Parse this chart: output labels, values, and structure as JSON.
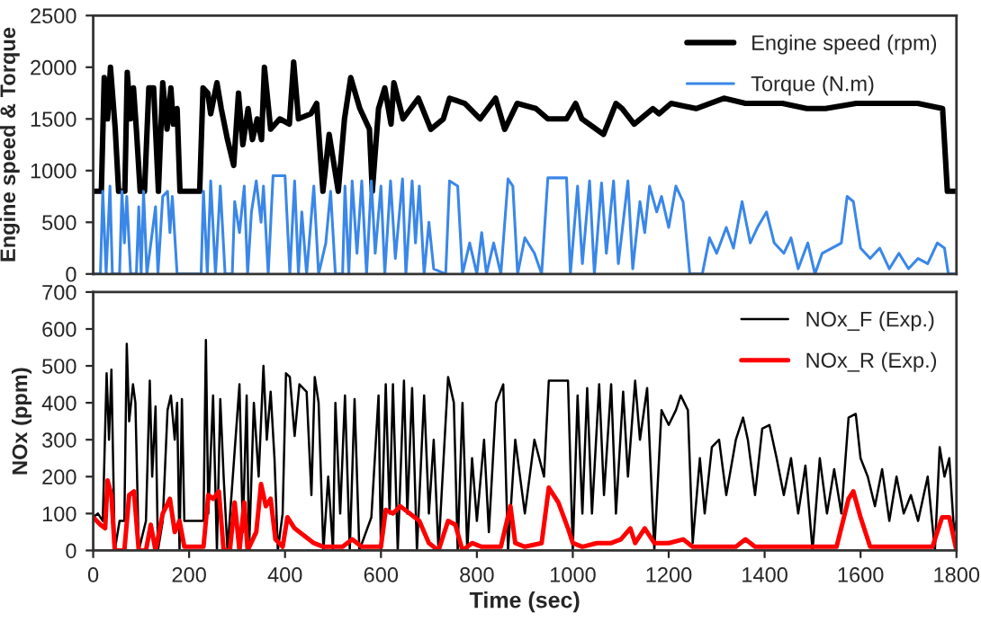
{
  "chart_data": [
    {
      "type": "line",
      "ylabel": "Engine speed & Torque",
      "xlim": [
        0,
        1800
      ],
      "ylim": [
        0,
        2500
      ],
      "yticks": [
        0,
        500,
        1000,
        1500,
        2000,
        2500
      ],
      "tick_labels": "y",
      "grid": false,
      "legend": "top right",
      "marker": "none",
      "line_style": "solid",
      "series": [
        {
          "name": "Engine speed (rpm)",
          "color": "#000000",
          "x": [
            0,
            17,
            23,
            30,
            36,
            46,
            53,
            66,
            71,
            78,
            84,
            90,
            98,
            107,
            116,
            126,
            136,
            145,
            154,
            162,
            167,
            175,
            181,
            222,
            229,
            239,
            245,
            258,
            267,
            280,
            293,
            303,
            312,
            323,
            332,
            342,
            351,
            357,
            370,
            389,
            409,
            418,
            428,
            454,
            466,
            479,
            492,
            511,
            524,
            537,
            556,
            576,
            582,
            595,
            608,
            621,
            627,
            646,
            678,
            704,
            730,
            743,
            775,
            807,
            839,
            858,
            884,
            923,
            948,
            987,
            1006,
            1019,
            1064,
            1090,
            1103,
            1128,
            1167,
            1180,
            1205,
            1257,
            1315,
            1360,
            1437,
            1488,
            1527,
            1591,
            1655,
            1719,
            1771,
            1781,
            1796
          ],
          "values": [
            800,
            800,
            1900,
            1500,
            2000,
            1400,
            800,
            800,
            1950,
            1500,
            1800,
            1400,
            800,
            800,
            1800,
            1800,
            800,
            1850,
            1400,
            1800,
            1450,
            1600,
            800,
            800,
            1800,
            1750,
            1550,
            1850,
            1600,
            1300,
            1050,
            1750,
            1250,
            1600,
            1300,
            1500,
            1300,
            2000,
            1400,
            1500,
            1450,
            2050,
            1500,
            1550,
            1650,
            800,
            1350,
            800,
            1500,
            1900,
            1600,
            1400,
            800,
            1600,
            1800,
            1450,
            1850,
            1500,
            1700,
            1400,
            1500,
            1700,
            1650,
            1500,
            1700,
            1400,
            1650,
            1600,
            1500,
            1500,
            1650,
            1500,
            1350,
            1650,
            1600,
            1450,
            1600,
            1550,
            1650,
            1600,
            1700,
            1650,
            1650,
            1600,
            1600,
            1650,
            1650,
            1650,
            1600,
            800,
            800
          ]
        },
        {
          "name": "Torque (N.m)",
          "color": "#3a87e8",
          "x": [
            0,
            15,
            20,
            27,
            35,
            40,
            55,
            60,
            65,
            70,
            78,
            90,
            95,
            100,
            105,
            112,
            130,
            135,
            145,
            155,
            160,
            165,
            175,
            225,
            230,
            238,
            245,
            255,
            265,
            275,
            290,
            295,
            305,
            315,
            322,
            330,
            340,
            350,
            355,
            365,
            375,
            400,
            410,
            420,
            428,
            435,
            445,
            460,
            470,
            485,
            495,
            505,
            520,
            525,
            533,
            540,
            550,
            560,
            570,
            580,
            588,
            600,
            608,
            620,
            630,
            645,
            652,
            665,
            672,
            680,
            690,
            700,
            710,
            735,
            743,
            760,
            770,
            785,
            800,
            810,
            820,
            835,
            850,
            865,
            875,
            885,
            900,
            920,
            935,
            948,
            987,
            995,
            1010,
            1020,
            1035,
            1045,
            1060,
            1070,
            1085,
            1095,
            1115,
            1125,
            1140,
            1150,
            1160,
            1175,
            1185,
            1200,
            1215,
            1230,
            1244,
            1270,
            1285,
            1300,
            1320,
            1335,
            1353,
            1370,
            1385,
            1404,
            1420,
            1440,
            1455,
            1470,
            1490,
            1505,
            1520,
            1540,
            1560,
            1572,
            1585,
            1600,
            1620,
            1640,
            1660,
            1680,
            1700,
            1720,
            1740,
            1760,
            1775,
            1783,
            1800
          ],
          "values": [
            0,
            0,
            800,
            0,
            850,
            0,
            0,
            800,
            300,
            750,
            0,
            0,
            650,
            0,
            800,
            0,
            650,
            0,
            750,
            800,
            400,
            750,
            0,
            0,
            800,
            0,
            900,
            0,
            850,
            0,
            0,
            700,
            400,
            850,
            0,
            600,
            900,
            500,
            850,
            0,
            950,
            950,
            0,
            900,
            0,
            600,
            0,
            850,
            0,
            300,
            800,
            0,
            0,
            850,
            0,
            900,
            200,
            900,
            0,
            900,
            200,
            850,
            0,
            900,
            150,
            920,
            0,
            900,
            300,
            850,
            0,
            500,
            50,
            0,
            900,
            850,
            0,
            300,
            0,
            400,
            0,
            300,
            0,
            920,
            850,
            0,
            350,
            200,
            0,
            930,
            930,
            0,
            850,
            100,
            900,
            0,
            880,
            200,
            900,
            100,
            900,
            50,
            700,
            400,
            850,
            600,
            750,
            450,
            850,
            700,
            0,
            0,
            350,
            200,
            450,
            250,
            700,
            300,
            450,
            600,
            300,
            200,
            350,
            50,
            300,
            0,
            200,
            250,
            300,
            750,
            700,
            250,
            150,
            250,
            50,
            200,
            50,
            150,
            100,
            300,
            250,
            0,
            0
          ]
        }
      ]
    },
    {
      "type": "line",
      "xlabel": "Time (sec)",
      "ylabel": "NOx (ppm)",
      "xlim": [
        0,
        1800
      ],
      "xticks": [
        0,
        200,
        400,
        600,
        800,
        1000,
        1200,
        1400,
        1600,
        1800
      ],
      "ylim": [
        0,
        700
      ],
      "yticks": [
        0,
        100,
        200,
        300,
        400,
        500,
        600,
        700
      ],
      "grid": false,
      "legend": "top right",
      "marker": "none",
      "line_style": "solid",
      "series": [
        {
          "name": "NOx_F (Exp.)",
          "color": "#000000",
          "x": [
            0,
            10,
            20,
            28,
            33,
            38,
            45,
            55,
            65,
            70,
            75,
            83,
            88,
            95,
            110,
            118,
            123,
            130,
            135,
            145,
            155,
            162,
            170,
            175,
            180,
            185,
            190,
            230,
            235,
            240,
            250,
            258,
            265,
            272,
            280,
            305,
            312,
            320,
            325,
            335,
            345,
            355,
            362,
            370,
            378,
            385,
            395,
            402,
            410,
            420,
            430,
            445,
            455,
            462,
            470,
            480,
            490,
            500,
            505,
            515,
            525,
            535,
            545,
            555,
            580,
            595,
            600,
            610,
            618,
            625,
            635,
            648,
            655,
            665,
            675,
            690,
            700,
            710,
            720,
            740,
            752,
            760,
            770,
            780,
            790,
            800,
            815,
            825,
            840,
            855,
            865,
            880,
            900,
            920,
            940,
            950,
            990,
            1000,
            1010,
            1020,
            1030,
            1040,
            1055,
            1065,
            1080,
            1090,
            1105,
            1115,
            1130,
            1140,
            1155,
            1170,
            1185,
            1200,
            1215,
            1225,
            1240,
            1250,
            1265,
            1275,
            1290,
            1305,
            1320,
            1340,
            1355,
            1365,
            1380,
            1395,
            1410,
            1425,
            1440,
            1455,
            1470,
            1485,
            1500,
            1515,
            1530,
            1545,
            1560,
            1575,
            1590,
            1600,
            1615,
            1630,
            1645,
            1660,
            1675,
            1690,
            1705,
            1720,
            1740,
            1755,
            1765,
            1775,
            1785,
            1795,
            1800
          ],
          "values": [
            90,
            100,
            80,
            480,
            300,
            490,
            0,
            80,
            80,
            560,
            350,
            450,
            400,
            0,
            80,
            460,
            200,
            390,
            0,
            80,
            380,
            420,
            300,
            400,
            0,
            410,
            80,
            80,
            570,
            100,
            420,
            0,
            410,
            200,
            0,
            450,
            50,
            420,
            0,
            400,
            200,
            500,
            300,
            430,
            250,
            0,
            100,
            480,
            470,
            310,
            450,
            430,
            150,
            470,
            400,
            0,
            200,
            0,
            400,
            100,
            420,
            0,
            410,
            0,
            90,
            420,
            0,
            450,
            100,
            450,
            0,
            460,
            100,
            440,
            0,
            420,
            100,
            300,
            0,
            470,
            400,
            0,
            400,
            0,
            250,
            80,
            300,
            50,
            400,
            450,
            0,
            300,
            100,
            300,
            200,
            460,
            460,
            0,
            420,
            100,
            440,
            100,
            450,
            150,
            450,
            100,
            430,
            200,
            460,
            300,
            440,
            0,
            380,
            340,
            380,
            420,
            380,
            20,
            250,
            100,
            280,
            300,
            150,
            300,
            360,
            300,
            150,
            330,
            340,
            250,
            150,
            250,
            100,
            230,
            0,
            250,
            100,
            220,
            100,
            360,
            370,
            250,
            200,
            120,
            220,
            80,
            200,
            100,
            150,
            80,
            200,
            0,
            280,
            200,
            250,
            50,
            80
          ]
        },
        {
          "name": "NOx_R (Exp.)",
          "color": "#ff0000",
          "x": [
            0,
            15,
            25,
            30,
            38,
            45,
            65,
            75,
            85,
            95,
            110,
            120,
            130,
            145,
            160,
            170,
            180,
            190,
            230,
            240,
            250,
            262,
            272,
            285,
            295,
            305,
            315,
            322,
            340,
            350,
            360,
            370,
            380,
            395,
            405,
            420,
            440,
            460,
            480,
            520,
            540,
            560,
            600,
            610,
            625,
            640,
            660,
            680,
            700,
            720,
            740,
            755,
            770,
            790,
            810,
            850,
            870,
            880,
            900,
            935,
            950,
            970,
            990,
            1000,
            1020,
            1050,
            1080,
            1100,
            1120,
            1130,
            1150,
            1170,
            1200,
            1230,
            1250,
            1300,
            1340,
            1360,
            1380,
            1450,
            1500,
            1550,
            1575,
            1585,
            1600,
            1620,
            1700,
            1750,
            1770,
            1785,
            1800
          ],
          "values": [
            90,
            70,
            60,
            190,
            150,
            0,
            0,
            150,
            160,
            0,
            0,
            70,
            0,
            100,
            140,
            50,
            80,
            10,
            10,
            150,
            140,
            160,
            0,
            0,
            130,
            0,
            130,
            0,
            50,
            180,
            120,
            140,
            30,
            10,
            90,
            60,
            40,
            20,
            10,
            10,
            30,
            10,
            10,
            110,
            100,
            120,
            100,
            80,
            20,
            0,
            80,
            70,
            0,
            20,
            10,
            10,
            120,
            20,
            10,
            20,
            170,
            130,
            60,
            20,
            10,
            20,
            20,
            30,
            60,
            20,
            60,
            20,
            20,
            30,
            10,
            10,
            10,
            30,
            10,
            10,
            10,
            10,
            140,
            160,
            90,
            10,
            10,
            10,
            90,
            90,
            0
          ]
        }
      ]
    }
  ]
}
